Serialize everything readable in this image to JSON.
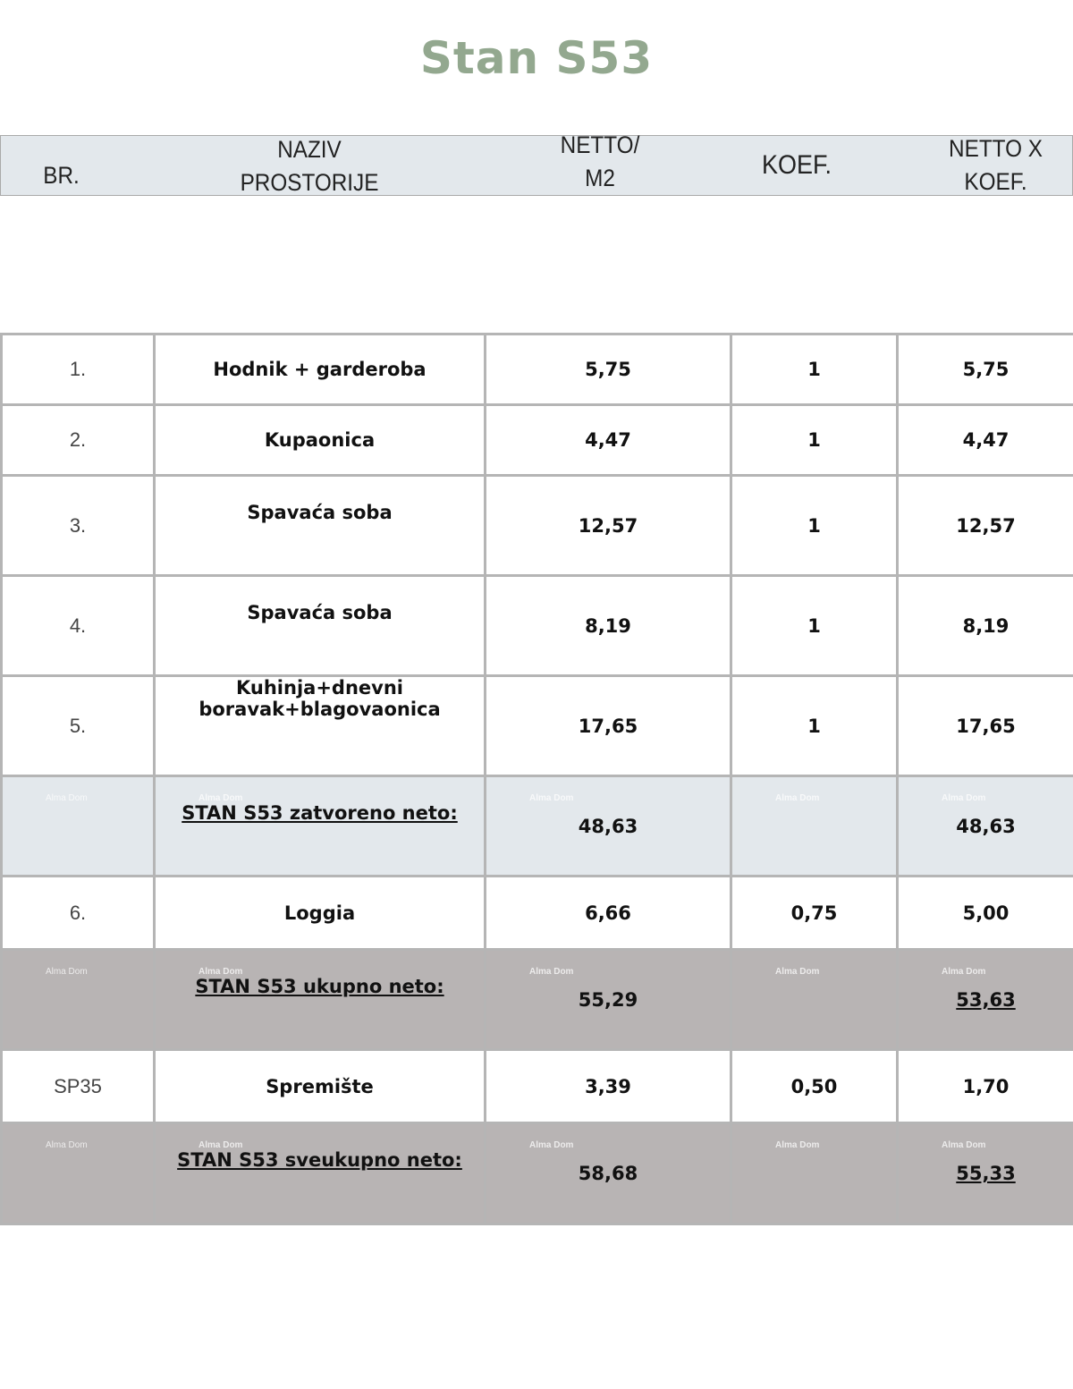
{
  "title": "Stan S53",
  "watermark": "Alma Dom",
  "header": {
    "br": "BR.",
    "naziv": [
      "NAZIV",
      "PROSTORIJE"
    ],
    "netto": [
      "NETTO/",
      "M2"
    ],
    "koef": "KOEF.",
    "nettoxkoef": [
      "NETTO X",
      "KOEF."
    ]
  },
  "rows": [
    {
      "br": "1.",
      "name": "Hodnik + garderoba",
      "netto": "5,75",
      "koef": "1",
      "total": "5,75"
    },
    {
      "br": "2.",
      "name": "Kupaonica",
      "netto": "4,47",
      "koef": "1",
      "total": "4,47"
    },
    {
      "br": "3.",
      "name": "Spavaća soba",
      "netto": "12,57",
      "koef": "1",
      "total": "12,57"
    },
    {
      "br": "4.",
      "name": "Spavaća soba",
      "netto": "8,19",
      "koef": "1",
      "total": "8,19"
    },
    {
      "br": "5.",
      "name": "Kuhinja+dnevni boravak+blagovaonica",
      "netto": "17,65",
      "koef": "1",
      "total": "17,65"
    },
    {
      "br": "",
      "name": "STAN S53 zatvoreno neto:",
      "netto": "48,63",
      "koef": "",
      "total": "48,63"
    },
    {
      "br": "6.",
      "name": "Loggia",
      "netto": "6,66",
      "koef": "0,75",
      "total": "5,00"
    },
    {
      "br": "",
      "name": "STAN S53 ukupno neto:",
      "netto": "55,29",
      "koef": "",
      "total": "53,63"
    },
    {
      "br": "SP35",
      "name": "Spremište",
      "netto": "3,39",
      "koef": "0,50",
      "total": "1,70"
    },
    {
      "br": "",
      "name": "STAN S53 sveukupno neto:",
      "netto": "58,68",
      "koef": "",
      "total": "55,33"
    }
  ]
}
